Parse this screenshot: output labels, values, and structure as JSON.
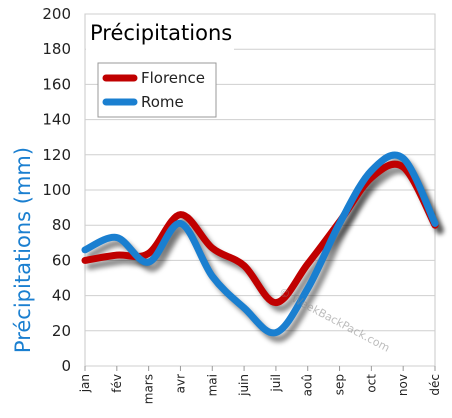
{
  "chart_data": {
    "type": "line",
    "title": "Précipitations",
    "ylabel": "Précipitations (mm)",
    "xlabel": "",
    "categories": [
      "jan",
      "fév",
      "mars",
      "avr",
      "mai",
      "juin",
      "juil",
      "aoû",
      "sep",
      "oct",
      "nov",
      "déc"
    ],
    "ylim": [
      0,
      200
    ],
    "yticks": [
      0,
      20,
      40,
      60,
      80,
      100,
      120,
      140,
      160,
      180,
      200
    ],
    "grid": true,
    "legend_position": "top-left",
    "series": [
      {
        "name": "Florence",
        "color": "#c00000",
        "values": [
          60,
          63,
          64,
          86,
          67,
          57,
          36,
          58,
          82,
          107,
          113,
          80
        ]
      },
      {
        "name": "Rome",
        "color": "#1a7fd0",
        "values": [
          66,
          73,
          59,
          81,
          51,
          33,
          19,
          44,
          81,
          111,
          118,
          81
        ]
      }
    ]
  },
  "watermark": "© WeekBackPack.com"
}
